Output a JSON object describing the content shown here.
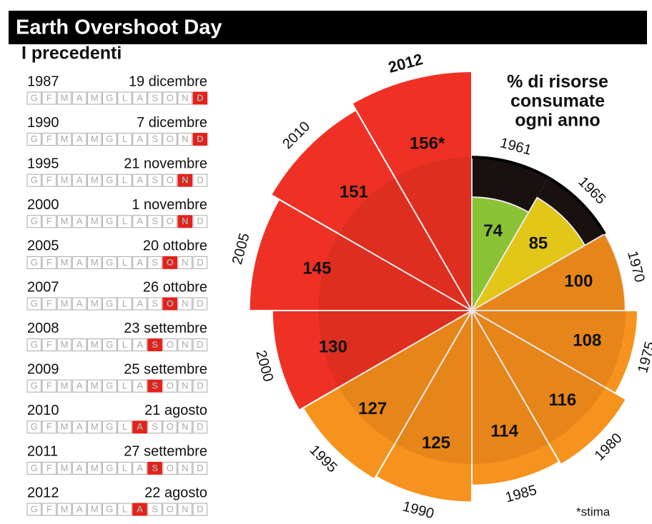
{
  "title": "Earth Overshoot Day",
  "subtitle": "I precedenti",
  "months": [
    "G",
    "F",
    "M",
    "A",
    "M",
    "G",
    "L",
    "A",
    "S",
    "O",
    "N",
    "D"
  ],
  "list": [
    {
      "year": "1987",
      "date": "19 dicembre",
      "month": 11
    },
    {
      "year": "1990",
      "date": "7 dicembre",
      "month": 11
    },
    {
      "year": "1995",
      "date": "21 novembre",
      "month": 10
    },
    {
      "year": "2000",
      "date": "1 novembre",
      "month": 10
    },
    {
      "year": "2005",
      "date": "20 ottobre",
      "month": 9
    },
    {
      "year": "2007",
      "date": "26 ottobre",
      "month": 9
    },
    {
      "year": "2008",
      "date": "23 settembre",
      "month": 8
    },
    {
      "year": "2009",
      "date": "25 settembre",
      "month": 8
    },
    {
      "year": "2010",
      "date": "21 agosto",
      "month": 7
    },
    {
      "year": "2011",
      "date": "27 settembre",
      "month": 8
    },
    {
      "year": "2012",
      "date": "22 agosto",
      "month": 7
    }
  ],
  "chart_data": {
    "type": "rose",
    "title": [
      "% di risorse",
      "consumate",
      "ogni anno"
    ],
    "categories": [
      "1961",
      "1965",
      "1970",
      "1975",
      "1980",
      "1985",
      "1990",
      "1995",
      "2000",
      "2005",
      "2010",
      "2012"
    ],
    "values": [
      74,
      85,
      100,
      108,
      116,
      114,
      125,
      127,
      130,
      145,
      151,
      156
    ],
    "value_labels": [
      "74",
      "85",
      "100",
      "108",
      "116",
      "114",
      "125",
      "127",
      "130",
      "145",
      "151",
      "156*"
    ],
    "colors": [
      "#8fd63a",
      "#f2dc1c",
      "#f6921e",
      "#f6921e",
      "#f6921e",
      "#f6921e",
      "#f6921e",
      "#f6921e",
      "#ee3124",
      "#ee3124",
      "#ee3124",
      "#ee3124"
    ],
    "reference_line": 100,
    "note": "*stima"
  }
}
